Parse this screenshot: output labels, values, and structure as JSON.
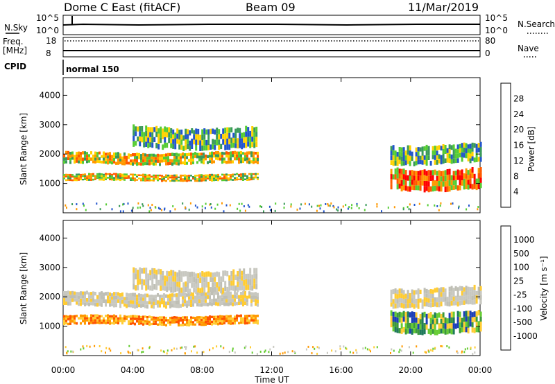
{
  "header": {
    "station": "Dome C East (fitACF)",
    "beam": "Beam 09",
    "date": "11/Mar/2019"
  },
  "top_panels": {
    "nsky_label": "N.Sky",
    "nsearch_label": "N.Search",
    "nsky_ticks": [
      "10^5",
      "10^0"
    ],
    "nsearch_ticks": [
      "10^5",
      "10^0"
    ],
    "freq_label_1": "Freq.",
    "freq_label_2": "[MHz]",
    "freq_ticks": [
      "18",
      "8"
    ],
    "nave_label": "Nave",
    "nave_ticks": [
      "80",
      "0"
    ],
    "cpid_label": "CPID",
    "cpid_value": "normal 150"
  },
  "chart_data": [
    {
      "type": "heatmap",
      "title": "",
      "quantity": "Power",
      "ylabel": "Slant Range [km]",
      "xlabel": "Time UT",
      "ylim": [
        0,
        4600
      ],
      "yticks": [
        "1000",
        "2000",
        "3000",
        "4000"
      ],
      "xticks": [
        "00:00",
        "04:00",
        "08:00",
        "12:00",
        "16:00",
        "20:00",
        "00:00"
      ],
      "colorbar": {
        "label": "Power [dB]",
        "ticks": [
          "28",
          "24",
          "20",
          "16",
          "12",
          "8",
          "4"
        ],
        "colors": [
          "#ff0000",
          "#ff5a00",
          "#ff9800",
          "#ffd200",
          "#55cc33",
          "#3a9a5a",
          "#2255cc",
          "#0000ff"
        ]
      },
      "bands": [
        {
          "t_start": "00:00",
          "t_end": "11:10",
          "range_km": [
            1050,
            1350
          ],
          "dominant": "orange/green"
        },
        {
          "t_start": "00:00",
          "t_end": "11:10",
          "range_km": [
            1600,
            2100
          ],
          "dominant": "orange/green"
        },
        {
          "t_start": "04:00",
          "t_end": "11:10",
          "range_km": [
            2100,
            3000
          ],
          "dominant": "green/blue"
        },
        {
          "t_start": "18:50",
          "t_end": "00:00",
          "range_km": [
            700,
            1600
          ],
          "dominant": "red/orange"
        },
        {
          "t_start": "18:50",
          "t_end": "00:00",
          "range_km": [
            1600,
            2400
          ],
          "dominant": "green"
        }
      ]
    },
    {
      "type": "heatmap",
      "title": "",
      "quantity": "Velocity",
      "ylabel": "Slant Range [km]",
      "xlabel": "Time UT",
      "ylim": [
        0,
        4600
      ],
      "yticks": [
        "1000",
        "2000",
        "3000",
        "4000"
      ],
      "xticks": [
        "00:00",
        "04:00",
        "08:00",
        "12:00",
        "16:00",
        "20:00",
        "00:00"
      ],
      "colorbar": {
        "label": "Velocity [m s⁻¹]",
        "ticks": [
          "1000",
          "500",
          "100",
          "25",
          "-25",
          "-100",
          "-500",
          "-1000"
        ],
        "colors": [
          "#1c3fb8",
          "#1f7a5a",
          "#3c9a3c",
          "#66cc33",
          "#c8c8c0",
          "#ffcc33",
          "#ff9900",
          "#ff5500",
          "#ee0000"
        ]
      },
      "bands": [
        {
          "t_start": "00:00",
          "t_end": "11:10",
          "range_km": [
            1000,
            1400
          ],
          "dominant": "orange"
        },
        {
          "t_start": "00:00",
          "t_end": "11:10",
          "range_km": [
            1600,
            2200
          ],
          "dominant": "grey"
        },
        {
          "t_start": "04:00",
          "t_end": "11:10",
          "range_km": [
            2100,
            3000
          ],
          "dominant": "grey"
        },
        {
          "t_start": "18:50",
          "t_end": "00:00",
          "range_km": [
            700,
            1600
          ],
          "dominant": "green/blue"
        },
        {
          "t_start": "18:50",
          "t_end": "00:00",
          "range_km": [
            1600,
            2400
          ],
          "dominant": "grey"
        }
      ]
    }
  ]
}
